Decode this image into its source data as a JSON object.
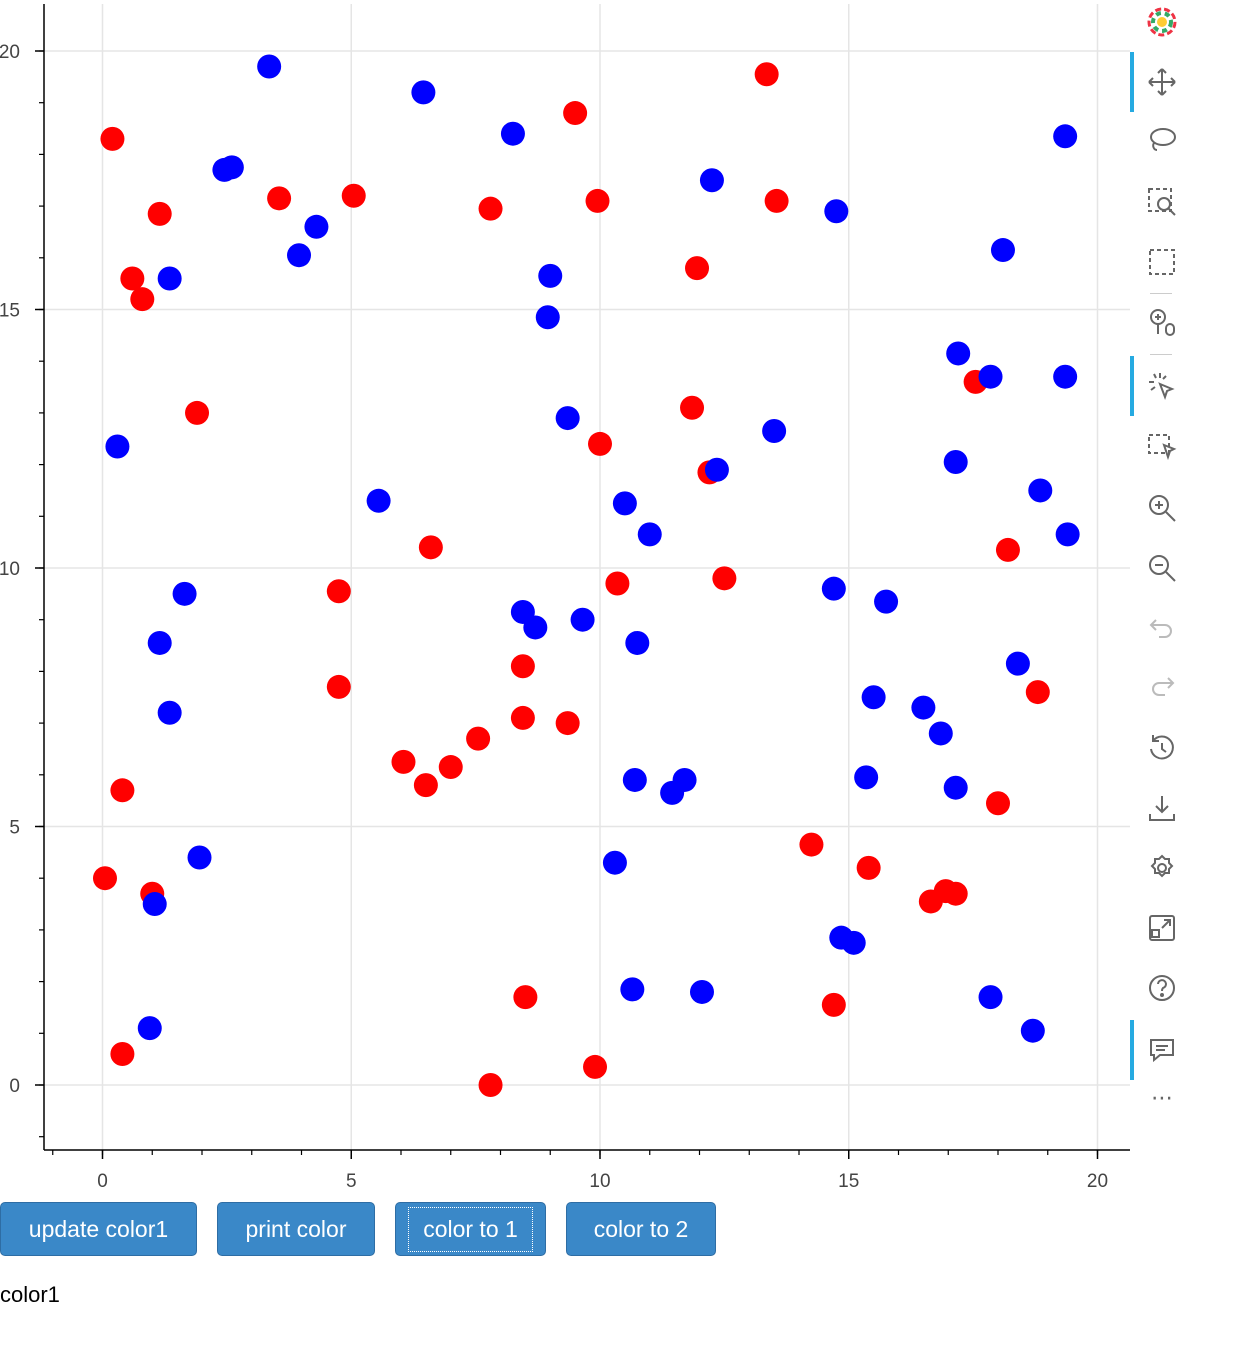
{
  "chart_data": {
    "type": "scatter",
    "xlim": [
      -1,
      20.6
    ],
    "ylim": [
      -1.2,
      20.9
    ],
    "x_ticks": [
      0,
      5,
      10,
      15,
      20
    ],
    "y_ticks": [
      0,
      5,
      10,
      15,
      20
    ],
    "grid": true,
    "series": [
      {
        "color": "#ff0000",
        "points": [
          [
            0.2,
            18.3
          ],
          [
            1.15,
            16.85
          ],
          [
            0.6,
            15.6
          ],
          [
            0.8,
            15.2
          ],
          [
            1.9,
            13.0
          ],
          [
            0.4,
            5.7
          ],
          [
            0.05,
            4.0
          ],
          [
            1.0,
            3.7
          ],
          [
            0.4,
            0.6
          ],
          [
            3.55,
            17.15
          ],
          [
            5.05,
            17.2
          ],
          [
            4.75,
            9.55
          ],
          [
            4.75,
            7.7
          ],
          [
            6.6,
            10.4
          ],
          [
            6.05,
            6.25
          ],
          [
            6.5,
            5.8
          ],
          [
            7.0,
            6.15
          ],
          [
            7.55,
            6.7
          ],
          [
            7.8,
            16.95
          ],
          [
            9.5,
            18.8
          ],
          [
            9.95,
            17.1
          ],
          [
            8.45,
            8.1
          ],
          [
            8.45,
            7.1
          ],
          [
            9.35,
            7.0
          ],
          [
            8.5,
            1.7
          ],
          [
            7.8,
            0.0
          ],
          [
            9.9,
            0.35
          ],
          [
            10.0,
            12.4
          ],
          [
            10.35,
            9.7
          ],
          [
            11.85,
            13.1
          ],
          [
            12.2,
            11.85
          ],
          [
            12.5,
            9.8
          ],
          [
            11.95,
            15.8
          ],
          [
            13.35,
            19.55
          ],
          [
            13.55,
            17.1
          ],
          [
            14.25,
            4.65
          ],
          [
            15.4,
            4.2
          ],
          [
            14.7,
            1.55
          ],
          [
            16.65,
            3.55
          ],
          [
            16.95,
            3.75
          ],
          [
            17.15,
            3.7
          ],
          [
            17.55,
            13.6
          ],
          [
            18.0,
            5.45
          ],
          [
            18.2,
            10.35
          ],
          [
            18.8,
            7.6
          ]
        ]
      },
      {
        "color": "#0000ff",
        "points": [
          [
            0.3,
            12.35
          ],
          [
            1.35,
            15.6
          ],
          [
            1.65,
            9.5
          ],
          [
            1.15,
            8.55
          ],
          [
            1.35,
            7.2
          ],
          [
            1.95,
            4.4
          ],
          [
            1.05,
            3.5
          ],
          [
            0.95,
            1.1
          ],
          [
            2.45,
            17.7
          ],
          [
            2.6,
            17.75
          ],
          [
            3.35,
            19.7
          ],
          [
            3.95,
            16.05
          ],
          [
            4.3,
            16.6
          ],
          [
            5.55,
            11.3
          ],
          [
            6.45,
            19.2
          ],
          [
            8.25,
            18.4
          ],
          [
            9.0,
            15.65
          ],
          [
            8.95,
            14.85
          ],
          [
            9.35,
            12.9
          ],
          [
            8.45,
            9.15
          ],
          [
            8.7,
            8.85
          ],
          [
            9.65,
            9.0
          ],
          [
            10.5,
            11.25
          ],
          [
            11.0,
            10.65
          ],
          [
            10.75,
            8.55
          ],
          [
            10.7,
            5.9
          ],
          [
            11.45,
            5.65
          ],
          [
            11.7,
            5.9
          ],
          [
            10.3,
            4.3
          ],
          [
            10.65,
            1.85
          ],
          [
            12.05,
            1.8
          ],
          [
            12.25,
            17.5
          ],
          [
            12.35,
            11.9
          ],
          [
            13.5,
            12.65
          ],
          [
            14.75,
            16.9
          ],
          [
            14.7,
            9.6
          ],
          [
            15.5,
            7.5
          ],
          [
            15.75,
            9.35
          ],
          [
            15.35,
            5.95
          ],
          [
            14.85,
            2.85
          ],
          [
            15.1,
            2.75
          ],
          [
            16.5,
            7.3
          ],
          [
            16.85,
            6.8
          ],
          [
            17.2,
            14.15
          ],
          [
            17.85,
            13.7
          ],
          [
            17.15,
            12.05
          ],
          [
            17.15,
            5.75
          ],
          [
            18.1,
            16.15
          ],
          [
            18.4,
            8.15
          ],
          [
            18.85,
            11.5
          ],
          [
            19.35,
            18.35
          ],
          [
            19.35,
            13.7
          ],
          [
            19.4,
            10.65
          ],
          [
            17.85,
            1.7
          ],
          [
            18.7,
            1.05
          ]
        ]
      }
    ]
  },
  "toolbar": {
    "tools": [
      "bokeh-logo-icon",
      "pan-icon",
      "lasso-select-icon",
      "box-zoom-icon",
      "box-select-icon",
      "wheel-zoom-icon",
      "tap-icon",
      "box-edit-icon",
      "zoom-in-icon",
      "zoom-out-icon",
      "undo-icon",
      "redo-icon",
      "reset-icon",
      "save-icon",
      "settings-icon",
      "fullscreen-icon",
      "help-icon",
      "tooltip-icon"
    ],
    "more_label": "⋯"
  },
  "buttons": {
    "update_color1": "update color1",
    "print_color": "print color",
    "color_to_1": "color to 1",
    "color_to_2": "color to 2"
  },
  "status_text": "color1"
}
